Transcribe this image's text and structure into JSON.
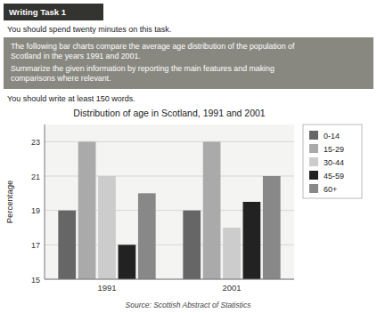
{
  "chart_data": {
    "type": "bar",
    "title": "Distribution of age in Scotland, 1991 and 2001",
    "ylabel": "Percentage",
    "annotations": [
      "Writing Task 1",
      "You should spend twenty minutes on this task.",
      "The following bar charts compare the average age distribution of the population of\nScotland in the years 1991 and 2001.",
      "Summarize the given information by reporting the main features and making\ncomparisons where relevant.",
      "You should write at least 150 words.",
      "Source: Scottish Abstract of Statistics"
    ],
    "categories": [
      "1991",
      "2001"
    ],
    "series": [
      {
        "name": "0-14",
        "color": "#666666",
        "values": [
          19,
          19
        ]
      },
      {
        "name": "15-29",
        "color": "#aaaaaa",
        "values": [
          23,
          23
        ]
      },
      {
        "name": "30-44",
        "color": "#cccccc",
        "values": [
          21,
          18
        ]
      },
      {
        "name": "45-59",
        "color": "#222222",
        "values": [
          17,
          19.5
        ]
      },
      {
        "name": "60+",
        "color": "#888888",
        "values": [
          20,
          21
        ]
      }
    ],
    "ylim": [
      15,
      24
    ],
    "yticks": [
      15,
      17,
      19,
      21,
      23
    ],
    "grid": true,
    "legend": "right"
  }
}
